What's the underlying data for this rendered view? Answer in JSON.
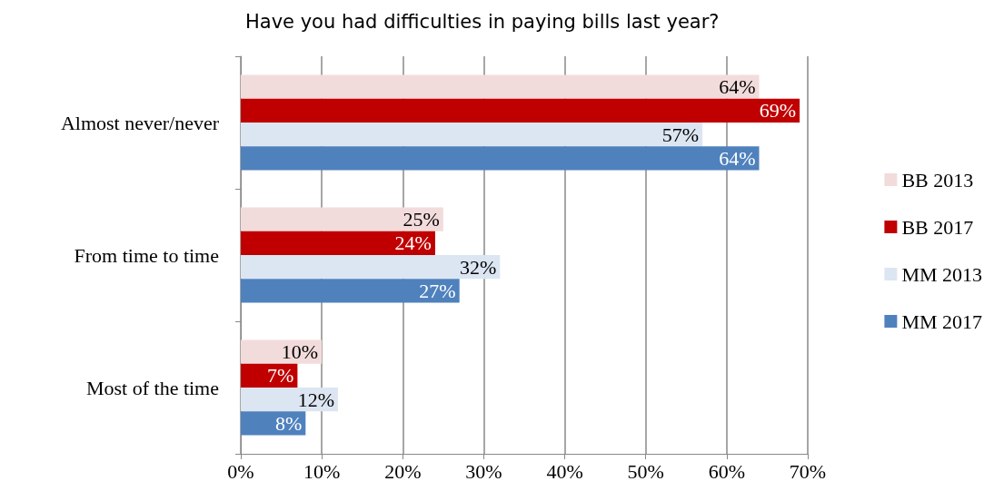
{
  "chart_data": {
    "type": "bar",
    "orientation": "horizontal",
    "title": "Have you had difficulties in paying bills last year?",
    "categories": [
      "Almost never/never",
      "From time to time",
      "Most of the time"
    ],
    "series": [
      {
        "name": "BB 2013",
        "color": "#f2dcdb",
        "values": [
          64,
          25,
          10
        ],
        "value_labels": [
          "64%",
          "25%",
          "10%"
        ]
      },
      {
        "name": "BB 2017",
        "color": "#c00000",
        "values": [
          69,
          24,
          7
        ],
        "value_labels": [
          "69%",
          "24%",
          "7%"
        ]
      },
      {
        "name": "MM 2013",
        "color": "#dce6f2",
        "values": [
          57,
          32,
          12
        ],
        "value_labels": [
          "57%",
          "32%",
          "12%"
        ]
      },
      {
        "name": "MM 2017",
        "color": "#4f81bd",
        "values": [
          64,
          27,
          8
        ],
        "value_labels": [
          "64%",
          "27%",
          "8%"
        ]
      }
    ],
    "xlim": [
      0,
      70
    ],
    "xticks": [
      {
        "value": 0,
        "label": "0%"
      },
      {
        "value": 10,
        "label": "10%"
      },
      {
        "value": 20,
        "label": "20%"
      },
      {
        "value": 30,
        "label": "30%"
      },
      {
        "value": 40,
        "label": "40%"
      },
      {
        "value": 50,
        "label": "50%"
      },
      {
        "value": 60,
        "label": "60%"
      },
      {
        "value": 70,
        "label": "70%"
      }
    ],
    "grid": "x",
    "legend": "right"
  }
}
